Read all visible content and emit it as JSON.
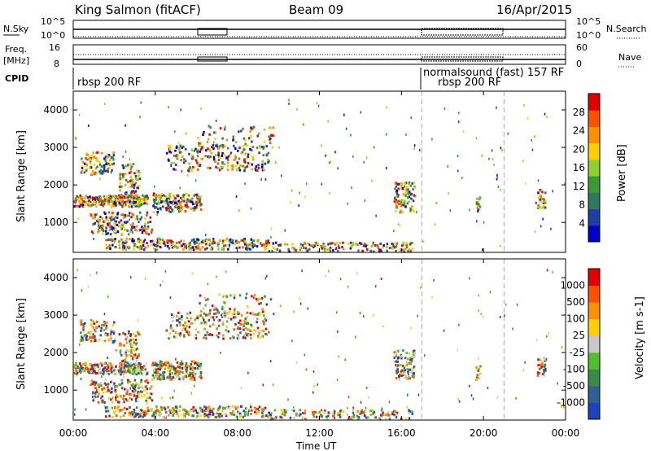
{
  "header": {
    "station": "King Salmon (fitACF)",
    "beam": "Beam 09",
    "date": "16/Apr/2015"
  },
  "summary_panels": {
    "nsky_label": "N.Sky",
    "nsky_ticks": [
      "10^5",
      "10^0"
    ],
    "nsearch_label": "N.Search",
    "nsearch_ticks": [
      "10^5",
      "10^0"
    ],
    "freq_label": "Freq.",
    "freq_unit": "[MHz]",
    "freq_ticks": [
      "16",
      "8"
    ],
    "nave_label": "Nave",
    "nave_ticks": [
      "60",
      "0"
    ],
    "cpid_label": "CPID",
    "cpid_segments": [
      {
        "label": "rbsp 200 RF",
        "start_hour": 0
      },
      {
        "label": "normalsound (fast) 157 RF",
        "start_hour": 17
      },
      {
        "label": "rbsp 200 RF",
        "start_hour": 17
      }
    ]
  },
  "chart_data": [
    {
      "type": "heatmap",
      "panel": "power",
      "ylabel": "Slant Range [km]",
      "xlim_hours": [
        0,
        24
      ],
      "ylim": [
        200,
        4500
      ],
      "yticks": [
        "1000",
        "2000",
        "3000",
        "4000"
      ],
      "colorbar": {
        "label": "Power [dB]",
        "ticks": [
          "28",
          "24",
          "20",
          "16",
          "12",
          "8",
          "4"
        ],
        "colors": [
          "#0000cc",
          "#1f3fa0",
          "#2f7a5a",
          "#3a9a3a",
          "#8fcf30",
          "#ffd000",
          "#ff9000",
          "#ff5000",
          "#e00000"
        ]
      },
      "vlines_hours": [
        17,
        21
      ]
    },
    {
      "type": "heatmap",
      "panel": "velocity",
      "ylabel": "Slant Range [km]",
      "xlabel": "Time UT",
      "xlim_hours": [
        0,
        24
      ],
      "ylim": [
        200,
        4500
      ],
      "xticks": [
        "00:00",
        "04:00",
        "08:00",
        "12:00",
        "16:00",
        "20:00",
        "00:00"
      ],
      "yticks": [
        "1000",
        "2000",
        "3000",
        "4000"
      ],
      "colorbar": {
        "label": "Velocity [m s-1]",
        "ticks": [
          "1000",
          "500",
          "100",
          "25",
          "-25",
          "-100",
          "-500",
          "-1000"
        ],
        "colors": [
          "#2040c0",
          "#306090",
          "#3a8a4a",
          "#50c030",
          "#c8c8c8",
          "#ffd000",
          "#ff9000",
          "#ff5000",
          "#e00000"
        ]
      },
      "vlines_hours": [
        17,
        21
      ]
    }
  ]
}
